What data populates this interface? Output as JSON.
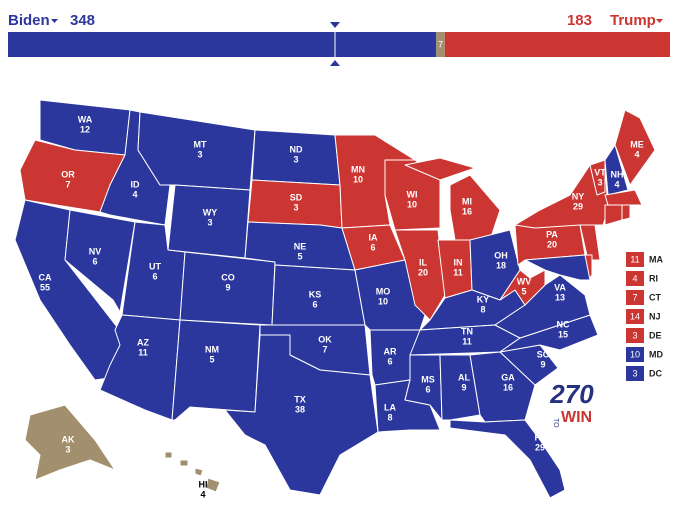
{
  "header": {
    "biden": {
      "name": "Biden",
      "total": 348,
      "color": "#2b379d"
    },
    "trump": {
      "name": "Trump",
      "total": 183,
      "color": "#cb3532"
    },
    "tossup": {
      "votes": 7,
      "color": "#a28f6d"
    }
  },
  "states": [
    {
      "abbr": "WA",
      "votes": 12,
      "color": "#2b379d"
    },
    {
      "abbr": "OR",
      "votes": 7,
      "color": "#cb3532"
    },
    {
      "abbr": "CA",
      "votes": 55,
      "color": "#2b379d"
    },
    {
      "abbr": "NV",
      "votes": 6,
      "color": "#2b379d"
    },
    {
      "abbr": "ID",
      "votes": 4,
      "color": "#2b379d"
    },
    {
      "abbr": "MT",
      "votes": 3,
      "color": "#2b379d"
    },
    {
      "abbr": "WY",
      "votes": 3,
      "color": "#2b379d"
    },
    {
      "abbr": "UT",
      "votes": 6,
      "color": "#2b379d"
    },
    {
      "abbr": "AZ",
      "votes": 11,
      "color": "#2b379d"
    },
    {
      "abbr": "CO",
      "votes": 9,
      "color": "#2b379d"
    },
    {
      "abbr": "NM",
      "votes": 5,
      "color": "#2b379d"
    },
    {
      "abbr": "ND",
      "votes": 3,
      "color": "#2b379d"
    },
    {
      "abbr": "SD",
      "votes": 3,
      "color": "#cb3532"
    },
    {
      "abbr": "NE",
      "votes": 5,
      "color": "#2b379d"
    },
    {
      "abbr": "KS",
      "votes": 6,
      "color": "#2b379d"
    },
    {
      "abbr": "OK",
      "votes": 7,
      "color": "#2b379d"
    },
    {
      "abbr": "TX",
      "votes": 38,
      "color": "#2b379d"
    },
    {
      "abbr": "MN",
      "votes": 10,
      "color": "#cb3532"
    },
    {
      "abbr": "IA",
      "votes": 6,
      "color": "#cb3532"
    },
    {
      "abbr": "MO",
      "votes": 10,
      "color": "#2b379d"
    },
    {
      "abbr": "AR",
      "votes": 6,
      "color": "#2b379d"
    },
    {
      "abbr": "LA",
      "votes": 8,
      "color": "#2b379d"
    },
    {
      "abbr": "WI",
      "votes": 10,
      "color": "#cb3532"
    },
    {
      "abbr": "IL",
      "votes": 20,
      "color": "#cb3532"
    },
    {
      "abbr": "MI",
      "votes": 16,
      "color": "#cb3532"
    },
    {
      "abbr": "IN",
      "votes": 11,
      "color": "#cb3532"
    },
    {
      "abbr": "OH",
      "votes": 18,
      "color": "#2b379d"
    },
    {
      "abbr": "KY",
      "votes": 8,
      "color": "#2b379d"
    },
    {
      "abbr": "TN",
      "votes": 11,
      "color": "#2b379d"
    },
    {
      "abbr": "MS",
      "votes": 6,
      "color": "#2b379d"
    },
    {
      "abbr": "AL",
      "votes": 9,
      "color": "#2b379d"
    },
    {
      "abbr": "GA",
      "votes": 16,
      "color": "#2b379d"
    },
    {
      "abbr": "FL",
      "votes": 29,
      "color": "#2b379d"
    },
    {
      "abbr": "SC",
      "votes": 9,
      "color": "#2b379d"
    },
    {
      "abbr": "NC",
      "votes": 15,
      "color": "#2b379d"
    },
    {
      "abbr": "VA",
      "votes": 13,
      "color": "#2b379d"
    },
    {
      "abbr": "WV",
      "votes": 5,
      "color": "#cb3532"
    },
    {
      "abbr": "PA",
      "votes": 20,
      "color": "#cb3532"
    },
    {
      "abbr": "NY",
      "votes": 29,
      "color": "#cb3532"
    },
    {
      "abbr": "VT",
      "votes": 3,
      "color": "#cb3532"
    },
    {
      "abbr": "NH",
      "votes": 4,
      "color": "#2b379d"
    },
    {
      "abbr": "ME",
      "votes": 4,
      "color": "#cb3532"
    },
    {
      "abbr": "AK",
      "votes": 3,
      "color": "#a28f6d"
    },
    {
      "abbr": "HI",
      "votes": 4,
      "color": "#a28f6d"
    }
  ],
  "small_states": [
    {
      "abbr": "MA",
      "votes": 11,
      "color": "#cb3532"
    },
    {
      "abbr": "RI",
      "votes": 4,
      "color": "#cb3532"
    },
    {
      "abbr": "CT",
      "votes": 7,
      "color": "#cb3532"
    },
    {
      "abbr": "NJ",
      "votes": 14,
      "color": "#cb3532"
    },
    {
      "abbr": "DE",
      "votes": 3,
      "color": "#cb3532"
    },
    {
      "abbr": "MD",
      "votes": 10,
      "color": "#2b379d"
    },
    {
      "abbr": "DC",
      "votes": 3,
      "color": "#2b379d"
    }
  ],
  "logo": {
    "number": "270",
    "to": "TO",
    "win": "WIN"
  }
}
